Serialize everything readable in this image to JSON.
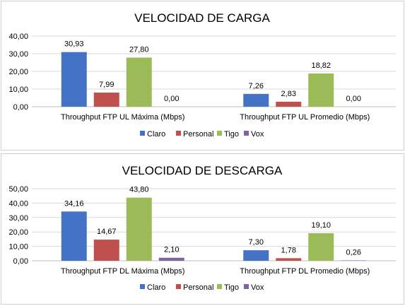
{
  "chart_data": [
    {
      "type": "bar",
      "title": "VELOCIDAD DE CARGA",
      "categories": [
        "Throughput FTP UL Máxima (Mbps)",
        "Throughput FTP UL Promedio (Mbps)"
      ],
      "series": [
        {
          "name": "Claro",
          "color": "#4472C4",
          "values": [
            30.93,
            7.26
          ],
          "labels": [
            "30,93",
            "7,26"
          ]
        },
        {
          "name": "Personal",
          "color": "#C0504D",
          "values": [
            7.99,
            2.83
          ],
          "labels": [
            "7,99",
            "2,83"
          ]
        },
        {
          "name": "Tigo",
          "color": "#9BBB59",
          "values": [
            27.8,
            18.82
          ],
          "labels": [
            "27,80",
            "18,82"
          ]
        },
        {
          "name": "Vox",
          "color": "#8064A2",
          "values": [
            0.0,
            0.0
          ],
          "labels": [
            "0,00",
            "0,00"
          ]
        }
      ],
      "ylim": [
        0,
        40
      ],
      "yticks": [
        "0,00",
        "10,00",
        "20,00",
        "30,00",
        "40,00"
      ],
      "grid": true,
      "legend": "bottom"
    },
    {
      "type": "bar",
      "title": "VELOCIDAD DE DESCARGA",
      "categories": [
        "Throughput FTP DL Máxima (Mbps)",
        "Throughput FTP DL Promedio (Mbps)"
      ],
      "series": [
        {
          "name": "Claro",
          "color": "#4472C4",
          "values": [
            34.16,
            7.3
          ],
          "labels": [
            "34,16",
            "7,30"
          ]
        },
        {
          "name": "Personal",
          "color": "#C0504D",
          "values": [
            14.67,
            1.78
          ],
          "labels": [
            "14,67",
            "1,78"
          ]
        },
        {
          "name": "Tigo",
          "color": "#9BBB59",
          "values": [
            43.8,
            19.1
          ],
          "labels": [
            "43,80",
            "19,10"
          ]
        },
        {
          "name": "Vox",
          "color": "#8064A2",
          "values": [
            2.1,
            0.26
          ],
          "labels": [
            "2,10",
            "0,26"
          ]
        }
      ],
      "ylim": [
        0,
        50
      ],
      "yticks": [
        "0,00",
        "10,00",
        "20,00",
        "30,00",
        "40,00",
        "50,00"
      ],
      "grid": true,
      "legend": "bottom"
    }
  ]
}
